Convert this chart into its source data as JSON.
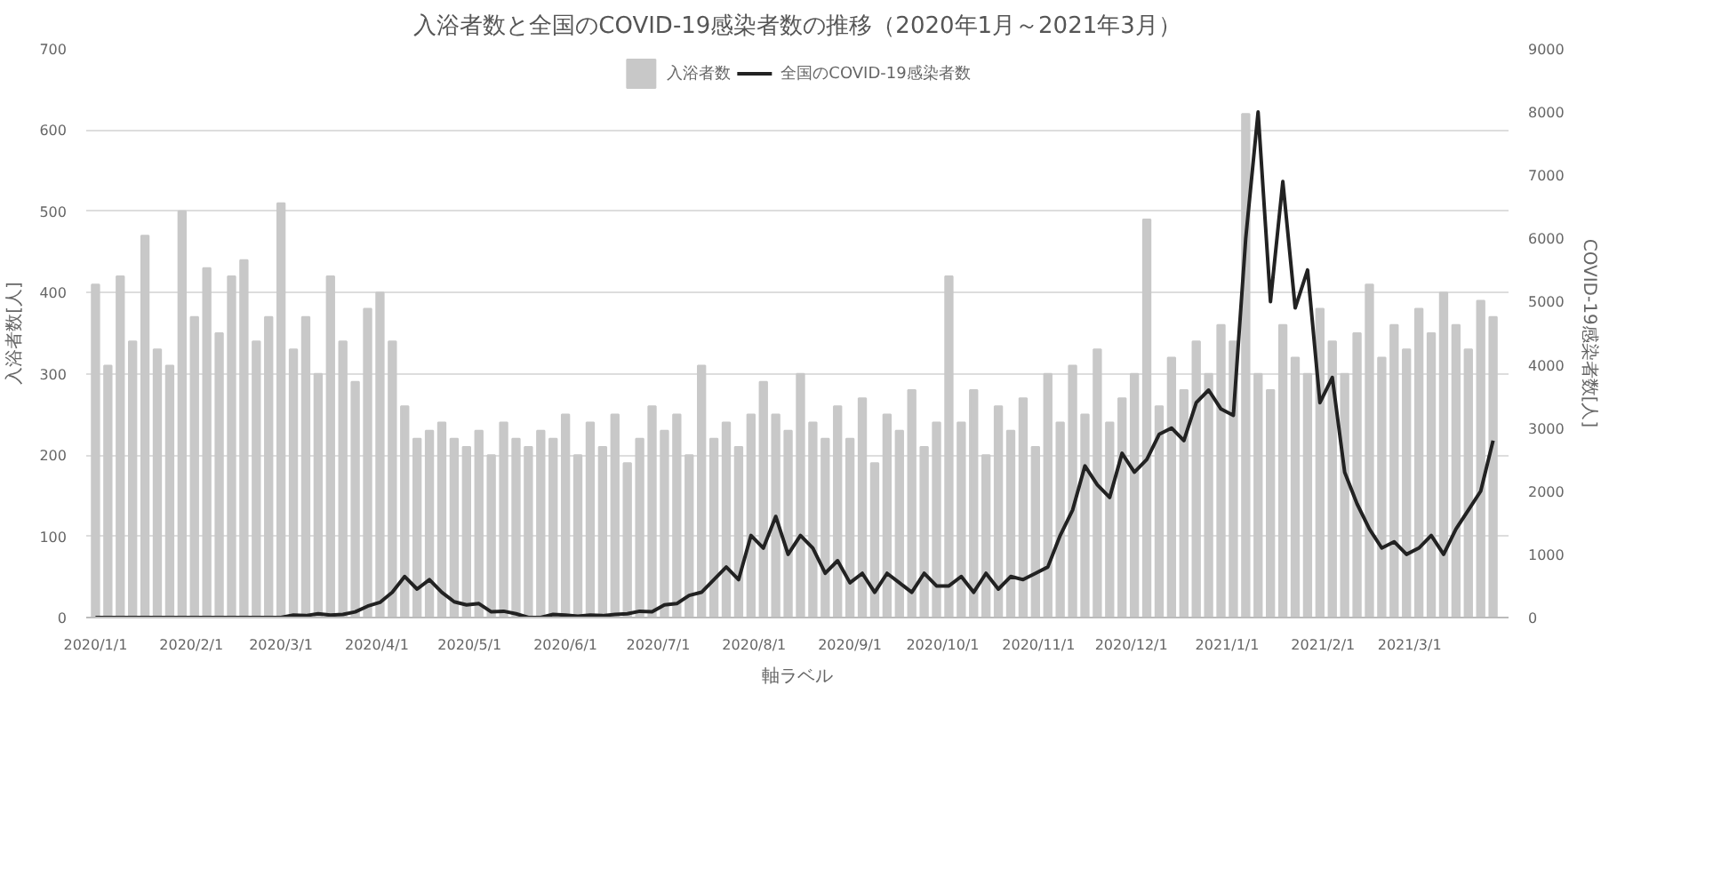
{
  "chart_data": {
    "type": "bar",
    "title": "入浴者数と全国のCOVID-19感染者数の推移（2020年1月～2021年3月）",
    "xlabel": "軸ラベル",
    "ylabel": "入浴者数[人]",
    "y2label": "COVID-19感染者数[人]",
    "x": [
      "2020-01-01",
      "2020-01-05",
      "2020-01-09",
      "2020-01-13",
      "2020-01-17",
      "2020-01-21",
      "2020-01-25",
      "2020-01-29",
      "2020-02-02",
      "2020-02-06",
      "2020-02-10",
      "2020-02-14",
      "2020-02-18",
      "2020-02-22",
      "2020-02-26",
      "2020-03-01",
      "2020-03-05",
      "2020-03-09",
      "2020-03-13",
      "2020-03-17",
      "2020-03-21",
      "2020-03-25",
      "2020-03-29",
      "2020-04-02",
      "2020-04-06",
      "2020-04-10",
      "2020-04-14",
      "2020-04-18",
      "2020-04-22",
      "2020-04-26",
      "2020-04-30",
      "2020-05-04",
      "2020-05-08",
      "2020-05-12",
      "2020-05-16",
      "2020-05-20",
      "2020-05-24",
      "2020-05-28",
      "2020-06-01",
      "2020-06-05",
      "2020-06-09",
      "2020-06-13",
      "2020-06-17",
      "2020-06-21",
      "2020-06-25",
      "2020-06-29",
      "2020-07-03",
      "2020-07-07",
      "2020-07-11",
      "2020-07-15",
      "2020-07-19",
      "2020-07-23",
      "2020-07-27",
      "2020-07-31",
      "2020-08-04",
      "2020-08-08",
      "2020-08-12",
      "2020-08-16",
      "2020-08-20",
      "2020-08-24",
      "2020-08-28",
      "2020-09-01",
      "2020-09-05",
      "2020-09-09",
      "2020-09-13",
      "2020-09-17",
      "2020-09-21",
      "2020-09-25",
      "2020-09-29",
      "2020-10-03",
      "2020-10-07",
      "2020-10-11",
      "2020-10-15",
      "2020-10-19",
      "2020-10-23",
      "2020-10-27",
      "2020-10-31",
      "2020-11-04",
      "2020-11-08",
      "2020-11-12",
      "2020-11-16",
      "2020-11-20",
      "2020-11-24",
      "2020-11-28",
      "2020-12-02",
      "2020-12-06",
      "2020-12-10",
      "2020-12-14",
      "2020-12-18",
      "2020-12-22",
      "2020-12-26",
      "2020-12-30",
      "2021-01-03",
      "2021-01-07",
      "2021-01-11",
      "2021-01-15",
      "2021-01-19",
      "2021-01-23",
      "2021-01-27",
      "2021-01-31",
      "2021-02-04",
      "2021-02-08",
      "2021-02-12",
      "2021-02-16",
      "2021-02-20",
      "2021-02-24",
      "2021-02-28",
      "2021-03-04",
      "2021-03-08",
      "2021-03-12",
      "2021-03-16",
      "2021-03-20",
      "2021-03-24",
      "2021-03-28"
    ],
    "series": [
      {
        "name": "入浴者数",
        "color": "#c8c8c8",
        "values": [
          410,
          310,
          420,
          340,
          470,
          330,
          310,
          500,
          370,
          430,
          350,
          420,
          440,
          340,
          370,
          510,
          330,
          370,
          300,
          420,
          340,
          290,
          380,
          400,
          340,
          260,
          220,
          230,
          240,
          220,
          210,
          230,
          200,
          240,
          220,
          210,
          230,
          220,
          250,
          200,
          240,
          210,
          250,
          190,
          220,
          260,
          230,
          250,
          200,
          310,
          220,
          240,
          210,
          250,
          290,
          250,
          230,
          300,
          240,
          220,
          260,
          220,
          270,
          190,
          250,
          230,
          280,
          210,
          240,
          420,
          240,
          280,
          200,
          260,
          230,
          270,
          210,
          300,
          240,
          310,
          250,
          330,
          240,
          270,
          300,
          490,
          260,
          320,
          280,
          340,
          300,
          360,
          340,
          620,
          300,
          280,
          360,
          320,
          300,
          380,
          340,
          300,
          350,
          410,
          320,
          360,
          330,
          380,
          350,
          400,
          360,
          330,
          390,
          370
        ]
      },
      {
        "name": "全国のCOVID-19感染者数",
        "type": "line",
        "axis": "y2",
        "color": "#222222",
        "values": [
          0,
          0,
          0,
          0,
          0,
          0,
          0,
          0,
          0,
          0,
          0,
          0,
          0,
          0,
          0,
          0,
          40,
          30,
          60,
          40,
          50,
          90,
          180,
          240,
          400,
          650,
          450,
          600,
          400,
          250,
          200,
          220,
          90,
          100,
          60,
          0,
          0,
          50,
          40,
          20,
          40,
          30,
          50,
          60,
          100,
          90,
          200,
          220,
          350,
          400,
          600,
          800,
          600,
          1300,
          1100,
          1600,
          1000,
          1300,
          1100,
          700,
          900,
          550,
          700,
          400,
          700,
          550,
          400,
          700,
          500,
          500,
          650,
          400,
          700,
          450,
          650,
          600,
          700,
          800,
          1300,
          1700,
          2400,
          2100,
          1900,
          2600,
          2300,
          2500,
          2900,
          3000,
          2800,
          3400,
          3600,
          3300,
          3200,
          6000,
          8000,
          5000,
          6900,
          4900,
          5500,
          3400,
          3800,
          2300,
          1800,
          1400,
          1100,
          1200,
          1000,
          1100,
          1300,
          1000,
          1400,
          1700,
          2000,
          2800
        ]
      }
    ],
    "xlim": [
      "2019-12-29",
      "2021-04-02"
    ],
    "xticks": [
      {
        "value": "2020-01-01",
        "label": "2020/1/1"
      },
      {
        "value": "2020-02-01",
        "label": "2020/2/1"
      },
      {
        "value": "2020-03-01",
        "label": "2020/3/1"
      },
      {
        "value": "2020-04-01",
        "label": "2020/4/1"
      },
      {
        "value": "2020-05-01",
        "label": "2020/5/1"
      },
      {
        "value": "2020-06-01",
        "label": "2020/6/1"
      },
      {
        "value": "2020-07-01",
        "label": "2020/7/1"
      },
      {
        "value": "2020-08-01",
        "label": "2020/8/1"
      },
      {
        "value": "2020-09-01",
        "label": "2020/9/1"
      },
      {
        "value": "2020-10-01",
        "label": "2020/10/1"
      },
      {
        "value": "2020-11-01",
        "label": "2020/11/1"
      },
      {
        "value": "2020-12-01",
        "label": "2020/12/1"
      },
      {
        "value": "2021-01-01",
        "label": "2021/1/1"
      },
      {
        "value": "2021-02-01",
        "label": "2021/2/1"
      },
      {
        "value": "2021-03-01",
        "label": "2021/3/1"
      }
    ],
    "ylim": [
      0,
      700
    ],
    "yticks": [
      0,
      100,
      200,
      300,
      400,
      500,
      600,
      700
    ],
    "y2lim": [
      0,
      9000
    ],
    "y2ticks": [
      0,
      1000,
      2000,
      3000,
      4000,
      5000,
      6000,
      7000,
      8000,
      9000
    ],
    "grid": "y",
    "legend": "top",
    "line_style": "solid",
    "marker": "none"
  }
}
